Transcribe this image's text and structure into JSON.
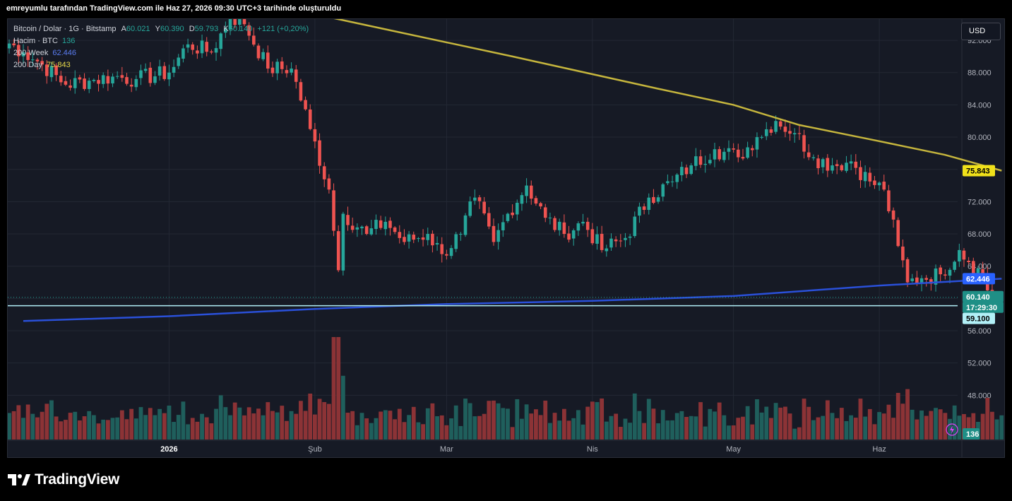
{
  "snapshot_title": "emreyumlu tarafından TradingView.com ile Haz 27, 2026 09:30 UTC+3 tarihinde oluşturuldu",
  "currency_button": "USD",
  "brand": {
    "name": "TradingView",
    "icon": "tradingview-logo-icon"
  },
  "legend": {
    "symbol": "Bitcoin / Dolar · 1G · Bitstamp",
    "open_label": "A",
    "open": "60.021",
    "high_label": "Y",
    "high": "60.390",
    "low_label": "D",
    "low": "59.793",
    "close_label": "K",
    "close": "60.140",
    "change": "+121 (+0,20%)",
    "volume_label": "Hacim · BTC",
    "volume": "136",
    "wma_label": "200 Week",
    "wma": "62.446",
    "dma_label": "200 Day",
    "dma": "75.843"
  },
  "colors": {
    "background": "#161a25",
    "up": "#26a69a",
    "down": "#ef5350",
    "volume_up": "#1f5f5c",
    "volume_down": "#8c3336",
    "ma200_day": "#c5b53d",
    "ma200_week": "#2a50d9",
    "support_line": "#b2f0f7",
    "grid": "#232834"
  },
  "price_badges": {
    "dma": "75.843",
    "wma": "62.446",
    "last": "60.140",
    "countdown": "17:29:30",
    "support": "59.100",
    "volume": "136"
  },
  "chart_data": {
    "type": "candlestick",
    "title": "Bitcoin / Dolar · 1G · Bitstamp",
    "y_axis_ticks": [
      "48.000",
      "52.000",
      "56.000",
      "60.000",
      "64.000",
      "68.000",
      "72.000",
      "76.000",
      "80.000",
      "84.000",
      "88.000",
      "92.000"
    ],
    "ylim": [
      44000,
      97000
    ],
    "x_axis_ticks": [
      "2026",
      "Şub",
      "Mar",
      "Nis",
      "May",
      "Haz"
    ],
    "grid": true,
    "support_level": 59100,
    "ohlc_anchors": [
      {
        "date": "2025-12-01",
        "close": 90500
      },
      {
        "date": "2025-12-05",
        "close": 89000
      },
      {
        "date": "2025-12-10",
        "close": 86500
      },
      {
        "date": "2025-12-15",
        "close": 87000
      },
      {
        "date": "2025-12-20",
        "close": 87500
      },
      {
        "date": "2025-12-25",
        "close": 87200
      },
      {
        "date": "2026-01-01",
        "close": 88000
      },
      {
        "date": "2026-01-05",
        "close": 91500
      },
      {
        "date": "2026-01-10",
        "close": 90500
      },
      {
        "date": "2026-01-14",
        "close": 95000
      },
      {
        "date": "2026-01-17",
        "close": 94000
      },
      {
        "date": "2026-01-22",
        "close": 88500
      },
      {
        "date": "2026-01-27",
        "close": 88500
      },
      {
        "date": "2026-01-31",
        "close": 81000
      },
      {
        "date": "2026-02-04",
        "close": 73500
      },
      {
        "date": "2026-02-06",
        "close": 63500
      },
      {
        "date": "2026-02-07",
        "close": 70500
      },
      {
        "date": "2026-02-12",
        "close": 68000
      },
      {
        "date": "2026-02-16",
        "close": 69500
      },
      {
        "date": "2026-02-20",
        "close": 67000
      },
      {
        "date": "2026-02-25",
        "close": 68000
      },
      {
        "date": "2026-02-28",
        "close": 65500
      },
      {
        "date": "2026-03-04",
        "close": 68000
      },
      {
        "date": "2026-03-07",
        "close": 72500
      },
      {
        "date": "2026-03-11",
        "close": 67000
      },
      {
        "date": "2026-03-14",
        "close": 70500
      },
      {
        "date": "2026-03-18",
        "close": 74000
      },
      {
        "date": "2026-03-22",
        "close": 70000
      },
      {
        "date": "2026-03-26",
        "close": 68000
      },
      {
        "date": "2026-03-30",
        "close": 69500
      },
      {
        "date": "2026-04-03",
        "close": 66000
      },
      {
        "date": "2026-04-08",
        "close": 67500
      },
      {
        "date": "2026-04-13",
        "close": 72500
      },
      {
        "date": "2026-04-18",
        "close": 74500
      },
      {
        "date": "2026-04-22",
        "close": 76500
      },
      {
        "date": "2026-04-27",
        "close": 78500
      },
      {
        "date": "2026-05-02",
        "close": 77500
      },
      {
        "date": "2026-05-06",
        "close": 80000
      },
      {
        "date": "2026-05-10",
        "close": 82000
      },
      {
        "date": "2026-05-14",
        "close": 80500
      },
      {
        "date": "2026-05-18",
        "close": 77500
      },
      {
        "date": "2026-05-22",
        "close": 76500
      },
      {
        "date": "2026-05-26",
        "close": 77000
      },
      {
        "date": "2026-05-30",
        "close": 74500
      },
      {
        "date": "2026-06-02",
        "close": 73500
      },
      {
        "date": "2026-06-05",
        "close": 66500
      },
      {
        "date": "2026-06-07",
        "close": 62000
      },
      {
        "date": "2026-06-10",
        "close": 62500
      },
      {
        "date": "2026-06-14",
        "close": 63000
      },
      {
        "date": "2026-06-18",
        "close": 66000
      },
      {
        "date": "2026-06-20",
        "close": 64500
      },
      {
        "date": "2026-06-23",
        "close": 63000
      },
      {
        "date": "2026-06-24",
        "close": 61000
      },
      {
        "date": "2026-06-25",
        "close": 59500
      },
      {
        "date": "2026-06-27",
        "close": 60140
      }
    ],
    "ma200_day_anchors": [
      {
        "date": "2026-01-14",
        "value": 97500
      },
      {
        "date": "2026-02-15",
        "value": 93500
      },
      {
        "date": "2026-03-15",
        "value": 90000
      },
      {
        "date": "2026-04-15",
        "value": 86000
      },
      {
        "date": "2026-05-01",
        "value": 84000
      },
      {
        "date": "2026-05-15",
        "value": 81500
      },
      {
        "date": "2026-06-01",
        "value": 79500
      },
      {
        "date": "2026-06-15",
        "value": 77800
      },
      {
        "date": "2026-06-27",
        "value": 75843
      }
    ],
    "ma200_week_anchors": [
      {
        "date": "2025-12-01",
        "value": 57200
      },
      {
        "date": "2026-01-01",
        "value": 57800
      },
      {
        "date": "2026-02-01",
        "value": 58700
      },
      {
        "date": "2026-03-01",
        "value": 59300
      },
      {
        "date": "2026-04-01",
        "value": 59700
      },
      {
        "date": "2026-05-01",
        "value": 60300
      },
      {
        "date": "2026-06-01",
        "value": 61600
      },
      {
        "date": "2026-06-27",
        "value": 62446
      }
    ]
  }
}
